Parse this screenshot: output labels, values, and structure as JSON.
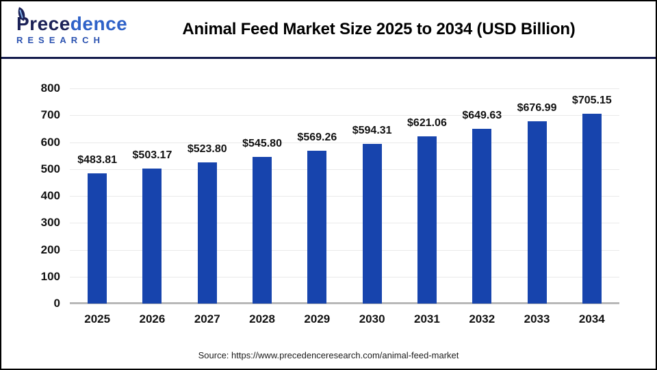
{
  "header": {
    "logo": {
      "word_part1": "Prece",
      "word_part2": "dence",
      "line2": "RESEARCH"
    },
    "title": "Animal Feed Market Size 2025 to 2034 (USD Billion)"
  },
  "chart_data": {
    "type": "bar",
    "title": "Animal Feed Market Size 2025 to 2034 (USD Billion)",
    "categories": [
      "2025",
      "2026",
      "2027",
      "2028",
      "2029",
      "2030",
      "2031",
      "2032",
      "2033",
      "2034"
    ],
    "values": [
      483.81,
      503.17,
      523.8,
      545.8,
      569.26,
      594.31,
      621.06,
      649.63,
      676.99,
      705.15
    ],
    "value_labels": [
      "$483.81",
      "$503.17",
      "$523.80",
      "$545.80",
      "$569.26",
      "$594.31",
      "$621.06",
      "$649.63",
      "$676.99",
      "$705.15"
    ],
    "xlabel": "",
    "ylabel": "",
    "ylim": [
      0,
      800
    ],
    "yticks": [
      0,
      100,
      200,
      300,
      400,
      500,
      600,
      700,
      800
    ],
    "grid": true,
    "legend": false,
    "bar_color": "#1744ad"
  },
  "footer": {
    "source": "Source: https://www.precedenceresearch.com/animal-feed-market"
  },
  "colors": {
    "bar": "#1744ad",
    "header_divider": "#11184a",
    "grid": "#e9e9e9",
    "baseline": "#b8b8b8",
    "logo_dark": "#1b2157",
    "logo_blue": "#2f62c8"
  }
}
